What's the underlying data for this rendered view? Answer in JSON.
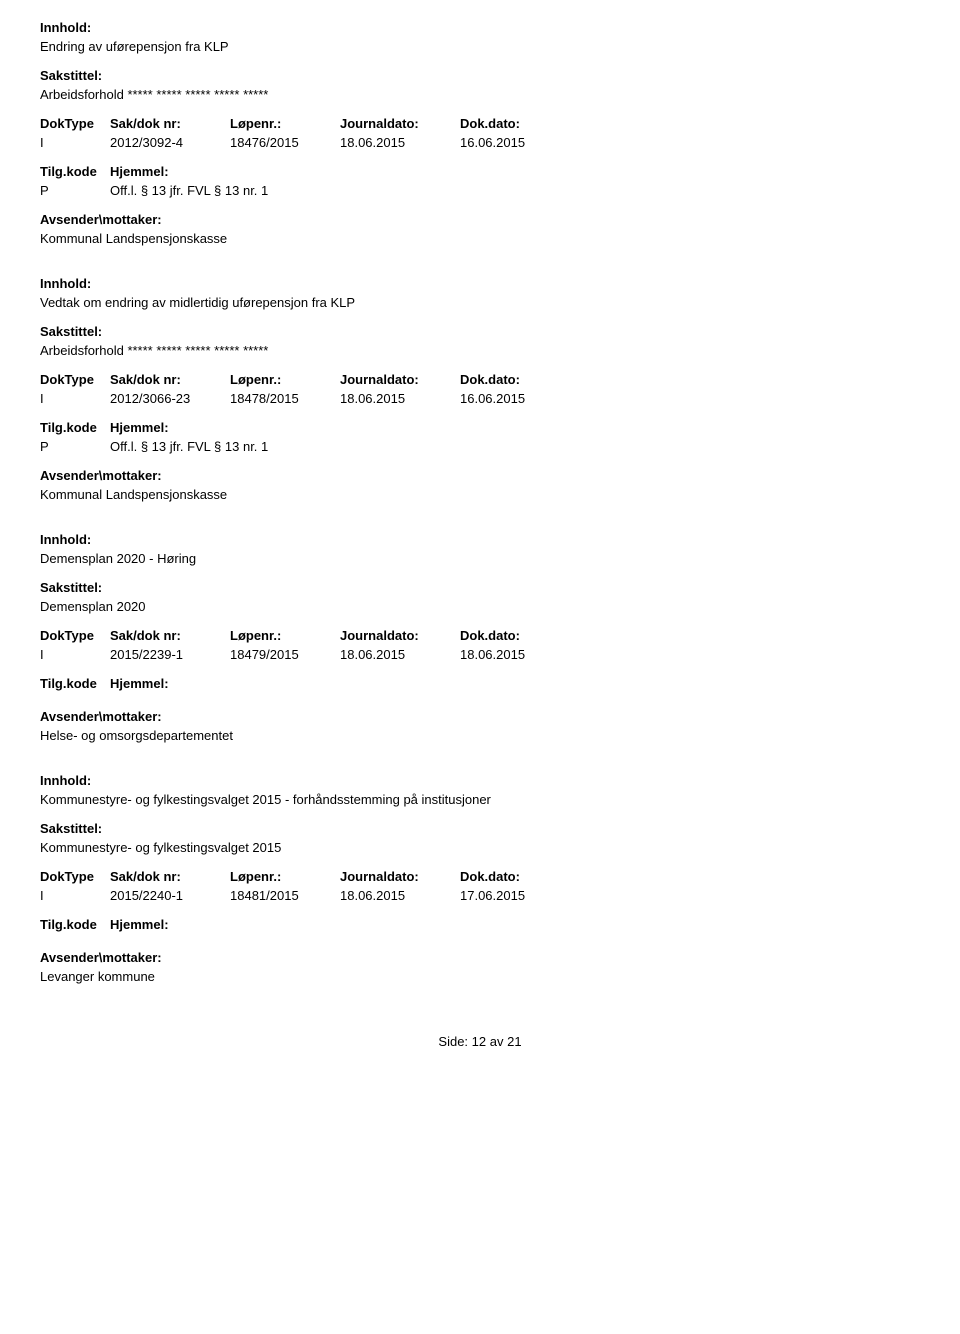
{
  "labels": {
    "innhold": "Innhold:",
    "sakstittel": "Sakstittel:",
    "doktype": "DokType",
    "sakdoknr": "Sak/dok nr:",
    "lopenr": "Løpenr.:",
    "journaldato": "Journaldato:",
    "dokdato": "Dok.dato:",
    "tilgkode": "Tilg.kode",
    "hjemmel": "Hjemmel:",
    "avsender": "Avsender\\mottaker:",
    "side": "Side:",
    "av": "av"
  },
  "records": [
    {
      "innhold": "Endring av uførepensjon fra KLP",
      "sakstittel": "Arbeidsforhold ***** ***** ***** ***** *****",
      "doktype": "I",
      "sakdoknr": "2012/3092-4",
      "lopenr": "18476/2015",
      "journaldato": "18.06.2015",
      "dokdato": "16.06.2015",
      "tilgkode": "P",
      "hjemmel": "Off.l. § 13 jfr. FVL § 13 nr. 1",
      "avsender": "Kommunal Landspensjonskasse"
    },
    {
      "innhold": "Vedtak om endring av midlertidig uførepensjon fra KLP",
      "sakstittel": "Arbeidsforhold ***** ***** ***** ***** *****",
      "doktype": "I",
      "sakdoknr": "2012/3066-23",
      "lopenr": "18478/2015",
      "journaldato": "18.06.2015",
      "dokdato": "16.06.2015",
      "tilgkode": "P",
      "hjemmel": "Off.l. § 13 jfr. FVL § 13 nr. 1",
      "avsender": "Kommunal Landspensjonskasse"
    },
    {
      "innhold": "Demensplan 2020 - Høring",
      "sakstittel": "Demensplan 2020",
      "doktype": "I",
      "sakdoknr": "2015/2239-1",
      "lopenr": "18479/2015",
      "journaldato": "18.06.2015",
      "dokdato": "18.06.2015",
      "tilgkode": "",
      "hjemmel": "",
      "avsender": "Helse- og omsorgsdepartementet"
    },
    {
      "innhold": "Kommunestyre- og fylkestingsvalget 2015 - forhåndsstemming på institusjoner",
      "sakstittel": "Kommunestyre- og fylkestingsvalget 2015",
      "doktype": "I",
      "sakdoknr": "2015/2240-1",
      "lopenr": "18481/2015",
      "journaldato": "18.06.2015",
      "dokdato": "17.06.2015",
      "tilgkode": "",
      "hjemmel": "",
      "avsender": "Levanger kommune"
    }
  ],
  "page": {
    "current": "12",
    "total": "21"
  }
}
